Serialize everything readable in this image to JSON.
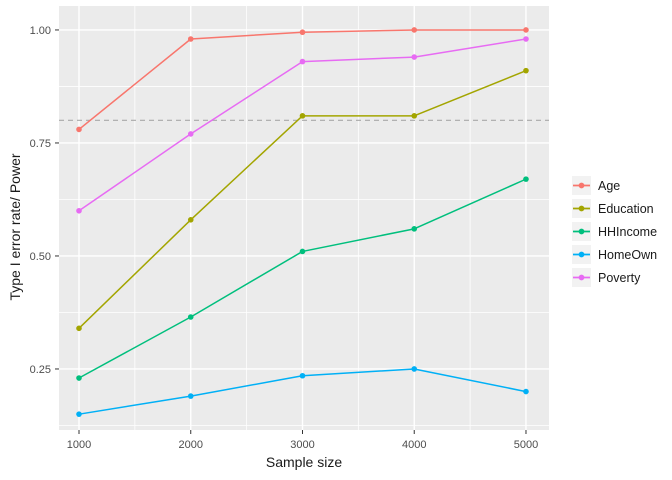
{
  "figure": {
    "background": "#FFFFFF",
    "panel_background": "#EBEBEB",
    "grid_color": "#FFFFFF",
    "tick_mark_color": "#333333",
    "tick_label_color": "#4D4D4D",
    "axis_title_color": "#1A1A1A",
    "legend_key_fill": "#F2F2F2",
    "legend_text_color": "#1A1A1A"
  },
  "chart_data": {
    "type": "line",
    "title": "",
    "xlabel": "Sample size",
    "ylabel": "Type I error rate/ Power",
    "x": [
      1000,
      2000,
      3000,
      4000,
      5000
    ],
    "x_tick_labels": [
      "1000",
      "2000",
      "3000",
      "4000",
      "5000"
    ],
    "y_tick_values": [
      0.25,
      0.5,
      0.75,
      1.0
    ],
    "y_tick_labels": [
      "0.25",
      "0.50",
      "0.75",
      "1.00"
    ],
    "x_minor_ticks": [
      1500,
      2500,
      3500,
      4500
    ],
    "y_minor_ticks": [
      0.125,
      0.375,
      0.625,
      0.875
    ],
    "xlim": [
      821,
      5206
    ],
    "ylim": [
      0.115,
      1.053
    ],
    "grid": true,
    "legend_position": "right",
    "reference_line": {
      "y": 0.8,
      "linetype": "dashed",
      "color": "#A9A9A9"
    },
    "series": [
      {
        "name": "Age",
        "color": "#F8766D",
        "values": [
          0.78,
          0.98,
          0.995,
          1.0,
          1.0
        ]
      },
      {
        "name": "Education",
        "color": "#A3A500",
        "values": [
          0.34,
          0.58,
          0.81,
          0.81,
          0.91
        ]
      },
      {
        "name": "HHIncome",
        "color": "#00BF7D",
        "values": [
          0.23,
          0.365,
          0.51,
          0.56,
          0.67
        ]
      },
      {
        "name": "HomeOwn",
        "color": "#00B0F6",
        "values": [
          0.15,
          0.19,
          0.235,
          0.25,
          0.2
        ]
      },
      {
        "name": "Poverty",
        "color": "#E76BF3",
        "values": [
          0.6,
          0.77,
          0.93,
          0.94,
          0.98
        ]
      }
    ]
  }
}
